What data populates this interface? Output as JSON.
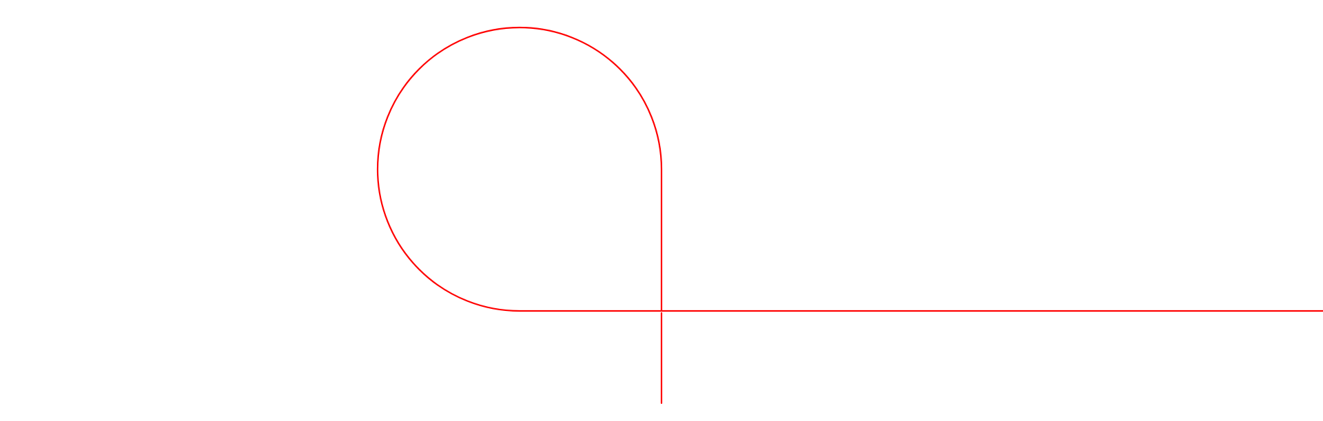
{
  "diagram": {
    "stroke_color": "#ff0000",
    "background_color": "#ffffff"
  }
}
